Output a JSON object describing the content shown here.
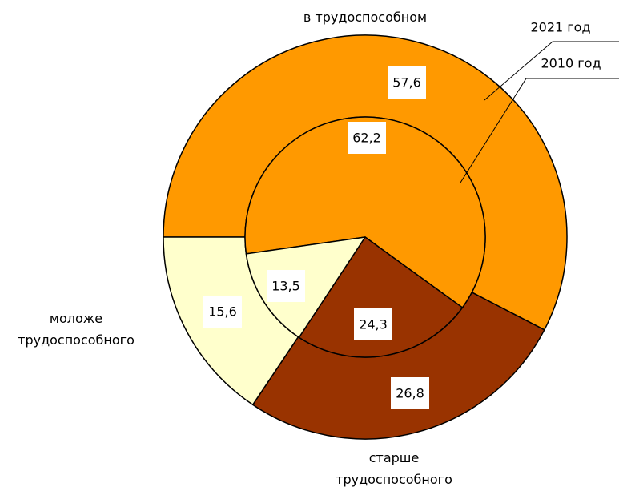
{
  "chart_data": {
    "type": "nested-pie",
    "categories": [
      "в трудоспособном",
      "старше\nтрудоспособного",
      "моложе\nтрудоспособного"
    ],
    "colors": [
      "#ff9900",
      "#993300",
      "#ffffcc"
    ],
    "series": [
      {
        "name": "2021 год",
        "values": [
          57.6,
          26.8,
          15.6
        ],
        "value_labels": [
          "57,6",
          "26,8",
          "15,6"
        ]
      },
      {
        "name": "2010 год",
        "values": [
          62.2,
          24.3,
          13.5
        ],
        "value_labels": [
          "62,2",
          "24,3",
          "13,5"
        ]
      }
    ]
  }
}
